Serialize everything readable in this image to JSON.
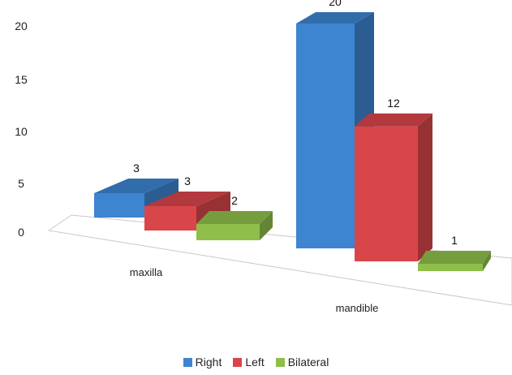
{
  "chart_data": {
    "type": "bar",
    "title": "",
    "xlabel": "",
    "ylabel": "",
    "categories": [
      "maxilla",
      "mandible"
    ],
    "series": [
      {
        "name": "Right",
        "values": [
          3,
          20
        ],
        "color": "#3d85d0"
      },
      {
        "name": "Left",
        "values": [
          3,
          12
        ],
        "color": "#d9464a"
      },
      {
        "name": "Bilateral",
        "values": [
          2,
          1
        ],
        "color": "#8fbf4a"
      }
    ],
    "yticks": [
      "0",
      "5",
      "10",
      "15",
      "20"
    ],
    "ylim": [
      0,
      20
    ],
    "data_labels": [
      [
        "3",
        "20"
      ],
      [
        "3",
        "12"
      ],
      [
        "2",
        "1"
      ]
    ],
    "legend": "bottom",
    "style": "3d-perspective-columns"
  }
}
